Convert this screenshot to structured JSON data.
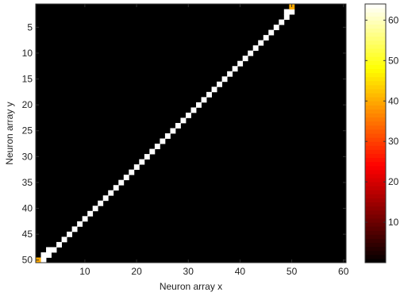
{
  "chart_data": {
    "type": "heatmap",
    "xlabel": "Neuron array x",
    "ylabel": "Neuron array y",
    "xlim": [
      0.5,
      60.5
    ],
    "ylim": [
      0.5,
      50.5
    ],
    "x_ticks": [
      10,
      20,
      30,
      40,
      50,
      60
    ],
    "y_ticks": [
      5,
      10,
      15,
      20,
      25,
      30,
      35,
      40,
      45,
      50
    ],
    "y_direction": "reversed",
    "colormap": "hot",
    "colorbar": {
      "ticks": [
        10,
        20,
        30,
        40,
        50,
        60
      ],
      "range": [
        0,
        64
      ]
    },
    "background_value": 0,
    "diagonal_value": 64,
    "cells": [
      {
        "x": 1,
        "y": 50,
        "value": 40
      },
      {
        "x": 2,
        "y": 50,
        "value": 64
      },
      {
        "x": 2,
        "y": 49,
        "value": 64
      },
      {
        "x": 3,
        "y": 49,
        "value": 64
      },
      {
        "x": 3,
        "y": 48,
        "value": 64
      },
      {
        "x": 4,
        "y": 48,
        "value": 64
      },
      {
        "x": 5,
        "y": 47,
        "value": 64
      },
      {
        "x": 6,
        "y": 46,
        "value": 64
      },
      {
        "x": 7,
        "y": 45,
        "value": 64
      },
      {
        "x": 8,
        "y": 44,
        "value": 64
      },
      {
        "x": 9,
        "y": 43,
        "value": 64
      },
      {
        "x": 10,
        "y": 42,
        "value": 64
      },
      {
        "x": 11,
        "y": 41,
        "value": 64
      },
      {
        "x": 12,
        "y": 40,
        "value": 64
      },
      {
        "x": 13,
        "y": 39,
        "value": 64
      },
      {
        "x": 14,
        "y": 38,
        "value": 64
      },
      {
        "x": 15,
        "y": 37,
        "value": 64
      },
      {
        "x": 16,
        "y": 36,
        "value": 64
      },
      {
        "x": 17,
        "y": 35,
        "value": 64
      },
      {
        "x": 18,
        "y": 34,
        "value": 64
      },
      {
        "x": 19,
        "y": 33,
        "value": 64
      },
      {
        "x": 20,
        "y": 32,
        "value": 64
      },
      {
        "x": 21,
        "y": 31,
        "value": 64
      },
      {
        "x": 22,
        "y": 30,
        "value": 64
      },
      {
        "x": 23,
        "y": 29,
        "value": 64
      },
      {
        "x": 24,
        "y": 28,
        "value": 64
      },
      {
        "x": 25,
        "y": 27,
        "value": 64
      },
      {
        "x": 26,
        "y": 26,
        "value": 64
      },
      {
        "x": 27,
        "y": 25,
        "value": 64
      },
      {
        "x": 28,
        "y": 24,
        "value": 64
      },
      {
        "x": 29,
        "y": 23,
        "value": 64
      },
      {
        "x": 30,
        "y": 22,
        "value": 64
      },
      {
        "x": 31,
        "y": 21,
        "value": 64
      },
      {
        "x": 32,
        "y": 20,
        "value": 64
      },
      {
        "x": 33,
        "y": 19,
        "value": 64
      },
      {
        "x": 34,
        "y": 18,
        "value": 64
      },
      {
        "x": 35,
        "y": 17,
        "value": 64
      },
      {
        "x": 36,
        "y": 16,
        "value": 64
      },
      {
        "x": 37,
        "y": 15,
        "value": 64
      },
      {
        "x": 38,
        "y": 14,
        "value": 64
      },
      {
        "x": 39,
        "y": 13,
        "value": 64
      },
      {
        "x": 40,
        "y": 12,
        "value": 64
      },
      {
        "x": 41,
        "y": 11,
        "value": 64
      },
      {
        "x": 42,
        "y": 10,
        "value": 64
      },
      {
        "x": 43,
        "y": 9,
        "value": 64
      },
      {
        "x": 44,
        "y": 8,
        "value": 64
      },
      {
        "x": 45,
        "y": 7,
        "value": 64
      },
      {
        "x": 46,
        "y": 6,
        "value": 64
      },
      {
        "x": 47,
        "y": 5,
        "value": 64
      },
      {
        "x": 48,
        "y": 4,
        "value": 64
      },
      {
        "x": 49,
        "y": 3,
        "value": 64
      },
      {
        "x": 49,
        "y": 2,
        "value": 64
      },
      {
        "x": 50,
        "y": 2,
        "value": 64
      },
      {
        "x": 50,
        "y": 1,
        "value": 40
      }
    ]
  }
}
